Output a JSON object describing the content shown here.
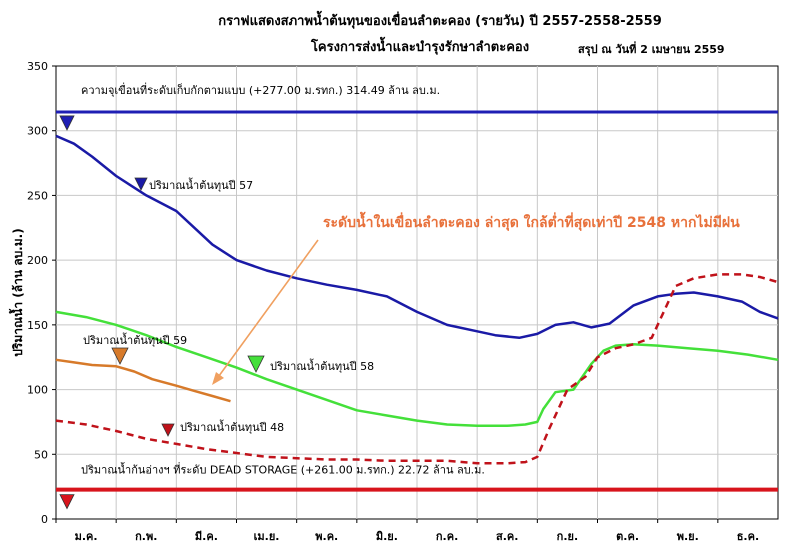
{
  "chart_data": {
    "type": "line",
    "title": "กราฟแสดงสภาพน้ำต้นทุนของเขื่อนลำตะคอง (รายวัน)  ปี 2557-2558-2559",
    "subtitle": "โครงการส่งน้ำและบำรุงรักษาลำตะคอง",
    "as_of": "สรุป ณ วันที่  2  เมษายน  2559",
    "ylabel": "ปริมาณน้ำ (ล้าน ลบ.ม.)",
    "xlabel": "",
    "ylim": [
      0,
      350
    ],
    "yticks": [
      0,
      50,
      100,
      150,
      200,
      250,
      300,
      350
    ],
    "xlim": [
      0,
      12
    ],
    "months": [
      "ม.ค.",
      "ก.พ.",
      "มี.ค.",
      "เม.ย.",
      "พ.ค.",
      "มิ.ย.",
      "ก.ค.",
      "ส.ค.",
      "ก.ย.",
      "ต.ค.",
      "พ.ย.",
      "ธ.ค."
    ],
    "grid": true,
    "capacity": {
      "value": 314.49,
      "label": "ความจุเขื่อนที่ระดับเก็บกักตามแบบ  (+277.00 ม.รทก.) 314.49  ล้าน ลบ.ม.",
      "color": "#1f1fb4"
    },
    "dead_storage": {
      "value": 22.72,
      "label": "ปริมาณน้ำก้นอ่างฯ ที่ระดับ  DEAD STORAGE  (+261.00 ม.รทก.)  22.72  ล้าน ลบ.ม.",
      "color": "#d8141c"
    },
    "annotation": "ระดับน้ำในเขื่อนลำตะคอง ล่าสุด ใกล้ต่ำที่สุดเท่าปี 2548 หากไม่มีฝน",
    "series": [
      {
        "name": "ปริมาณน้ำต้นทุนปี 57",
        "color": "#1a1aa6",
        "style": "solid",
        "x": [
          0,
          0.3,
          0.6,
          1.0,
          1.5,
          2.0,
          2.3,
          2.6,
          3.0,
          3.5,
          4.0,
          4.5,
          5.0,
          5.5,
          6.0,
          6.5,
          7.0,
          7.3,
          7.7,
          8.0,
          8.3,
          8.6,
          8.9,
          9.2,
          9.6,
          10.0,
          10.3,
          10.6,
          11.0,
          11.4,
          11.7,
          12.0
        ],
        "y": [
          296,
          290,
          280,
          265,
          250,
          238,
          225,
          212,
          200,
          192,
          186,
          181,
          177,
          172,
          160,
          150,
          145,
          142,
          140,
          143,
          150,
          152,
          148,
          151,
          165,
          172,
          174,
          175,
          172,
          168,
          160,
          155
        ]
      },
      {
        "name": "ปริมาณน้ำต้นทุนปี 58",
        "color": "#44e03a",
        "style": "solid",
        "x": [
          0,
          0.5,
          1.0,
          1.5,
          2.0,
          2.5,
          3.0,
          3.5,
          4.0,
          4.5,
          5.0,
          5.5,
          6.0,
          6.5,
          7.0,
          7.5,
          7.8,
          8.0,
          8.1,
          8.3,
          8.6,
          8.9,
          9.1,
          9.3,
          9.6,
          10.0,
          10.5,
          11.0,
          11.5,
          12.0
        ],
        "y": [
          160,
          156,
          150,
          142,
          133,
          125,
          117,
          108,
          100,
          92,
          84,
          80,
          76,
          73,
          72,
          72,
          73,
          75,
          85,
          98,
          100,
          120,
          130,
          134,
          135,
          134,
          132,
          130,
          127,
          123
        ]
      },
      {
        "name": "ปริมาณน้ำต้นทุนปี 59",
        "color": "#d77a2a",
        "style": "solid",
        "x": [
          0,
          0.3,
          0.6,
          1.0,
          1.3,
          1.6,
          2.0,
          2.3,
          2.6,
          2.9
        ],
        "y": [
          123,
          121,
          119,
          118,
          114,
          108,
          103,
          99,
          95,
          91
        ]
      },
      {
        "name": "ปริมาณน้ำต้นทุนปี 48",
        "color": "#c0121a",
        "style": "dashed",
        "x": [
          0,
          0.5,
          1.0,
          1.5,
          2.0,
          2.5,
          3.0,
          3.5,
          4.0,
          4.5,
          5.0,
          5.5,
          6.0,
          6.5,
          7.0,
          7.5,
          7.8,
          8.0,
          8.2,
          8.5,
          8.8,
          9.0,
          9.3,
          9.6,
          9.9,
          10.1,
          10.3,
          10.6,
          11.0,
          11.4,
          11.7,
          12.0
        ],
        "y": [
          76,
          73,
          68,
          62,
          58,
          54,
          51,
          48,
          47,
          46,
          46,
          45,
          45,
          45,
          43,
          43,
          44,
          48,
          70,
          100,
          110,
          125,
          132,
          135,
          140,
          160,
          180,
          186,
          189,
          189,
          187,
          183
        ]
      }
    ],
    "series_labels": [
      {
        "series": 0,
        "text": "ปริมาณน้ำต้นทุนปี 57"
      },
      {
        "series": 1,
        "text": "ปริมาณน้ำต้นทุนปี 58"
      },
      {
        "series": 2,
        "text": "ปริมาณน้ำต้นทุนปี  59"
      },
      {
        "series": 3,
        "text": "ปริมาณน้ำต้นทุนปี  48"
      }
    ]
  }
}
